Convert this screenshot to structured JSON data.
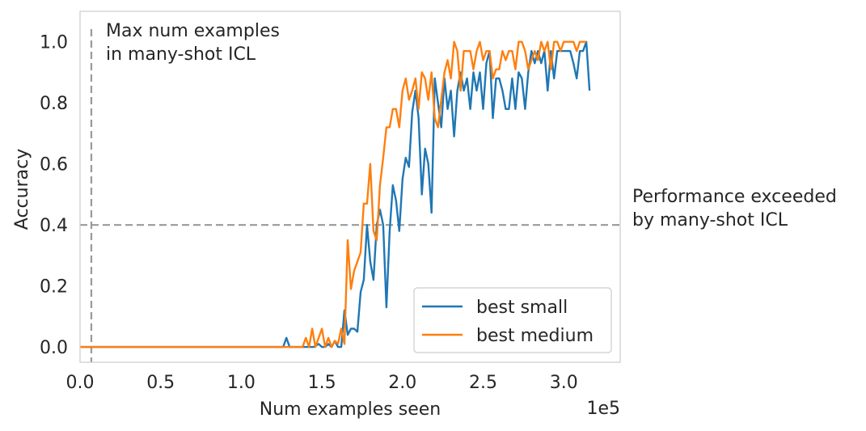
{
  "chart_data": {
    "type": "line",
    "xlabel": "Num examples seen",
    "ylabel": "Accuracy",
    "x_offset_label": "1e5",
    "xlim": [
      0,
      3.35
    ],
    "ylim": [
      -0.05,
      1.1
    ],
    "x_ticks": [
      0.0,
      0.5,
      1.0,
      1.5,
      2.0,
      2.5,
      3.0
    ],
    "x_tick_labels": [
      "0.0",
      "0.5",
      "1.0",
      "1.5",
      "2.0",
      "2.5",
      "3.0"
    ],
    "y_ticks": [
      0.0,
      0.2,
      0.4,
      0.6,
      0.8,
      1.0
    ],
    "y_tick_labels": [
      "0.0",
      "0.2",
      "0.4",
      "0.6",
      "0.8",
      "1.0"
    ],
    "grid": false,
    "legend_position": "lower-right",
    "reference_lines": {
      "vertical_x": 0.07,
      "horizontal_y": 0.4,
      "color": "#999999"
    },
    "annotations": {
      "vertical_label": [
        "Max num examples",
        "in many-shot ICL"
      ],
      "horizontal_label": [
        "Performance exceeded",
        "by many-shot ICL"
      ]
    },
    "series": [
      {
        "name": "best small",
        "color": "#1f77b4",
        "points": [
          [
            0.0,
            0
          ],
          [
            0.2,
            0
          ],
          [
            0.4,
            0
          ],
          [
            0.6,
            0
          ],
          [
            0.8,
            0
          ],
          [
            1.0,
            0
          ],
          [
            1.2,
            0
          ],
          [
            1.26,
            0
          ],
          [
            1.28,
            0.03
          ],
          [
            1.3,
            0
          ],
          [
            1.45,
            0
          ],
          [
            1.48,
            0.01
          ],
          [
            1.5,
            0
          ],
          [
            1.52,
            0
          ],
          [
            1.54,
            0.01
          ],
          [
            1.56,
            0
          ],
          [
            1.58,
            0.02
          ],
          [
            1.6,
            0
          ],
          [
            1.62,
            0
          ],
          [
            1.64,
            0.12
          ],
          [
            1.66,
            0.04
          ],
          [
            1.68,
            0.06
          ],
          [
            1.7,
            0.06
          ],
          [
            1.72,
            0.05
          ],
          [
            1.74,
            0.18
          ],
          [
            1.76,
            0.22
          ],
          [
            1.78,
            0.4
          ],
          [
            1.8,
            0.28
          ],
          [
            1.82,
            0.22
          ],
          [
            1.84,
            0.4
          ],
          [
            1.86,
            0.45
          ],
          [
            1.88,
            0.4
          ],
          [
            1.9,
            0.13
          ],
          [
            1.92,
            0.38
          ],
          [
            1.94,
            0.53
          ],
          [
            1.96,
            0.48
          ],
          [
            1.98,
            0.38
          ],
          [
            2.0,
            0.55
          ],
          [
            2.02,
            0.62
          ],
          [
            2.04,
            0.59
          ],
          [
            2.06,
            0.77
          ],
          [
            2.08,
            0.84
          ],
          [
            2.1,
            0.75
          ],
          [
            2.12,
            0.5
          ],
          [
            2.14,
            0.65
          ],
          [
            2.16,
            0.6
          ],
          [
            2.18,
            0.44
          ],
          [
            2.2,
            0.88
          ],
          [
            2.22,
            0.8
          ],
          [
            2.24,
            0.72
          ],
          [
            2.26,
            0.88
          ],
          [
            2.28,
            0.78
          ],
          [
            2.3,
            0.84
          ],
          [
            2.32,
            0.69
          ],
          [
            2.34,
            0.84
          ],
          [
            2.36,
            0.9
          ],
          [
            2.38,
            0.84
          ],
          [
            2.4,
            0.88
          ],
          [
            2.42,
            0.78
          ],
          [
            2.44,
            0.9
          ],
          [
            2.46,
            0.84
          ],
          [
            2.48,
            0.9
          ],
          [
            2.5,
            0.78
          ],
          [
            2.52,
            0.93
          ],
          [
            2.54,
            0.97
          ],
          [
            2.56,
            0.75
          ],
          [
            2.58,
            0.88
          ],
          [
            2.6,
            0.88
          ],
          [
            2.62,
            0.84
          ],
          [
            2.64,
            0.78
          ],
          [
            2.66,
            0.78
          ],
          [
            2.68,
            0.88
          ],
          [
            2.7,
            0.78
          ],
          [
            2.72,
            0.9
          ],
          [
            2.74,
            0.88
          ],
          [
            2.76,
            0.78
          ],
          [
            2.78,
            0.9
          ],
          [
            2.8,
            0.97
          ],
          [
            2.82,
            0.93
          ],
          [
            2.84,
            0.97
          ],
          [
            2.86,
            0.93
          ],
          [
            2.88,
            0.97
          ],
          [
            2.9,
            0.84
          ],
          [
            2.92,
            0.97
          ],
          [
            2.94,
            0.88
          ],
          [
            2.96,
            0.97
          ],
          [
            2.98,
            0.97
          ],
          [
            3.0,
            0.97
          ],
          [
            3.02,
            0.97
          ],
          [
            3.04,
            0.97
          ],
          [
            3.06,
            0.93
          ],
          [
            3.08,
            0.88
          ],
          [
            3.1,
            0.97
          ],
          [
            3.12,
            0.97
          ],
          [
            3.14,
            1.0
          ],
          [
            3.16,
            0.84
          ]
        ]
      },
      {
        "name": "best medium",
        "color": "#ff7f0e",
        "points": [
          [
            0.0,
            0
          ],
          [
            0.2,
            0
          ],
          [
            0.4,
            0
          ],
          [
            0.6,
            0
          ],
          [
            0.8,
            0
          ],
          [
            1.0,
            0
          ],
          [
            1.2,
            0
          ],
          [
            1.38,
            0
          ],
          [
            1.4,
            0.03
          ],
          [
            1.42,
            0
          ],
          [
            1.44,
            0.06
          ],
          [
            1.46,
            0
          ],
          [
            1.48,
            0.03
          ],
          [
            1.5,
            0.06
          ],
          [
            1.52,
            0
          ],
          [
            1.54,
            0.03
          ],
          [
            1.56,
            0
          ],
          [
            1.58,
            0.02
          ],
          [
            1.6,
            0.01
          ],
          [
            1.62,
            0.06
          ],
          [
            1.64,
            0.01
          ],
          [
            1.66,
            0.35
          ],
          [
            1.68,
            0.19
          ],
          [
            1.7,
            0.25
          ],
          [
            1.72,
            0.28
          ],
          [
            1.74,
            0.31
          ],
          [
            1.76,
            0.47
          ],
          [
            1.78,
            0.47
          ],
          [
            1.8,
            0.6
          ],
          [
            1.82,
            0.38
          ],
          [
            1.84,
            0.35
          ],
          [
            1.86,
            0.53
          ],
          [
            1.88,
            0.62
          ],
          [
            1.9,
            0.72
          ],
          [
            1.92,
            0.72
          ],
          [
            1.94,
            0.78
          ],
          [
            1.96,
            0.78
          ],
          [
            1.98,
            0.72
          ],
          [
            2.0,
            0.84
          ],
          [
            2.02,
            0.88
          ],
          [
            2.04,
            0.81
          ],
          [
            2.06,
            0.84
          ],
          [
            2.08,
            0.88
          ],
          [
            2.1,
            0.78
          ],
          [
            2.12,
            0.9
          ],
          [
            2.14,
            0.88
          ],
          [
            2.16,
            0.81
          ],
          [
            2.18,
            0.9
          ],
          [
            2.2,
            0.75
          ],
          [
            2.22,
            0.72
          ],
          [
            2.24,
            0.81
          ],
          [
            2.26,
            0.9
          ],
          [
            2.28,
            0.94
          ],
          [
            2.3,
            0.88
          ],
          [
            2.32,
            1.0
          ],
          [
            2.34,
            0.97
          ],
          [
            2.36,
            0.84
          ],
          [
            2.38,
            0.97
          ],
          [
            2.4,
            0.97
          ],
          [
            2.42,
            0.97
          ],
          [
            2.44,
            0.91
          ],
          [
            2.46,
            0.97
          ],
          [
            2.48,
            1.0
          ],
          [
            2.5,
            0.94
          ],
          [
            2.52,
            0.97
          ],
          [
            2.54,
            0.97
          ],
          [
            2.56,
            0.88
          ],
          [
            2.58,
            0.91
          ],
          [
            2.6,
            0.91
          ],
          [
            2.62,
            0.97
          ],
          [
            2.64,
            0.94
          ],
          [
            2.66,
            0.97
          ],
          [
            2.68,
            0.97
          ],
          [
            2.7,
            0.91
          ],
          [
            2.72,
            1.0
          ],
          [
            2.74,
            1.0
          ],
          [
            2.76,
            0.97
          ],
          [
            2.78,
            0.91
          ],
          [
            2.8,
            0.94
          ],
          [
            2.82,
            0.97
          ],
          [
            2.84,
            0.94
          ],
          [
            2.86,
            1.0
          ],
          [
            2.88,
            0.97
          ],
          [
            2.9,
            1.0
          ],
          [
            2.92,
            0.91
          ],
          [
            2.94,
            1.0
          ],
          [
            2.96,
            1.0
          ],
          [
            2.98,
            0.97
          ],
          [
            3.0,
            1.0
          ],
          [
            3.02,
            1.0
          ],
          [
            3.04,
            1.0
          ],
          [
            3.06,
            1.0
          ],
          [
            3.08,
            0.97
          ],
          [
            3.1,
            1.0
          ],
          [
            3.12,
            1.0
          ],
          [
            3.14,
            1.0
          ]
        ]
      }
    ]
  }
}
